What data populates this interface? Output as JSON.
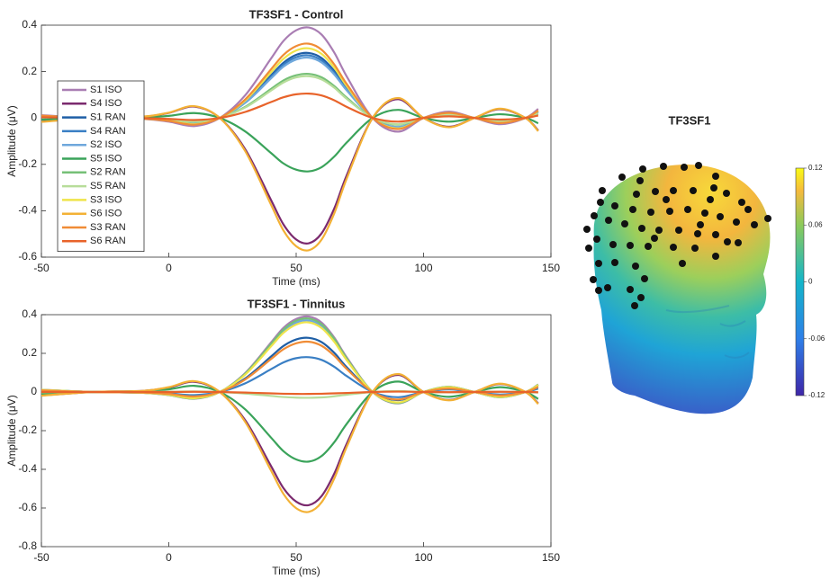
{
  "chart_data": [
    {
      "type": "line",
      "title": "TF3SF1 - Control",
      "xlabel": "Time (ms)",
      "ylabel": "Amplitude (μV)",
      "x": [
        -50,
        -30,
        -10,
        0,
        10,
        20,
        30,
        40,
        45,
        50,
        55,
        60,
        65,
        70,
        80,
        90,
        100,
        110,
        120,
        130,
        140,
        145
      ],
      "xlim": [
        -50,
        150
      ],
      "xticks": [
        -50,
        0,
        50,
        100,
        150
      ],
      "ylim": [
        -0.6,
        0.4
      ],
      "yticks": [
        -0.6,
        -0.4,
        -0.2,
        0,
        0.2,
        0.4
      ],
      "legend": "upper left",
      "series": [
        {
          "name": "S1 ISO",
          "color": "#a97db3",
          "values": [
            0.012,
            0,
            -0.004,
            -0.016,
            -0.035,
            0,
            0.098,
            0.254,
            0.332,
            0.378,
            0.39,
            0.359,
            0.281,
            0.176,
            0,
            -0.059,
            0,
            0.027,
            0,
            -0.027,
            0,
            0.039
          ]
        },
        {
          "name": "S4 ISO",
          "color": "#7b2a6e",
          "values": [
            -0.016,
            0,
            0.005,
            0.022,
            0.049,
            0,
            -0.135,
            -0.351,
            -0.459,
            -0.524,
            -0.54,
            -0.497,
            -0.389,
            -0.243,
            0,
            0.081,
            0,
            -0.038,
            0,
            0.038,
            0,
            -0.054
          ]
        },
        {
          "name": "S1 RAN",
          "color": "#1f5fa6",
          "values": [
            0.008,
            0,
            -0.003,
            -0.011,
            -0.025,
            0,
            0.07,
            0.182,
            0.238,
            0.272,
            0.28,
            0.258,
            0.202,
            0.126,
            0,
            -0.042,
            0,
            0.02,
            0,
            -0.02,
            0,
            0.028
          ]
        },
        {
          "name": "S4 RAN",
          "color": "#3a7fc4",
          "values": [
            0.008,
            0,
            -0.003,
            -0.011,
            -0.024,
            0,
            0.068,
            0.176,
            0.23,
            0.262,
            0.27,
            0.248,
            0.194,
            0.122,
            0,
            -0.041,
            0,
            0.019,
            0,
            -0.019,
            0,
            0.027
          ]
        },
        {
          "name": "S2 ISO",
          "color": "#6fa8dc",
          "values": [
            0.008,
            0,
            -0.003,
            -0.01,
            -0.023,
            0,
            0.065,
            0.169,
            0.221,
            0.252,
            0.26,
            0.239,
            0.187,
            0.117,
            0,
            -0.039,
            0,
            0.018,
            0,
            -0.018,
            0,
            0.026
          ]
        },
        {
          "name": "S5 ISO",
          "color": "#3aa35a",
          "values": [
            -0.007,
            0,
            0.002,
            0.009,
            0.021,
            0,
            -0.058,
            -0.15,
            -0.196,
            -0.223,
            -0.23,
            -0.212,
            -0.166,
            -0.104,
            0,
            0.035,
            0,
            -0.016,
            0,
            0.016,
            0,
            -0.023
          ]
        },
        {
          "name": "S2 RAN",
          "color": "#76c077",
          "values": [
            0.006,
            0,
            -0.002,
            -0.008,
            -0.017,
            0,
            0.048,
            0.124,
            0.162,
            0.184,
            0.19,
            0.175,
            0.137,
            0.086,
            0,
            -0.029,
            0,
            0.013,
            0,
            -0.013,
            0,
            0.019
          ]
        },
        {
          "name": "S5 RAN",
          "color": "#b7dd9a",
          "values": [
            0.005,
            0,
            -0.002,
            -0.007,
            -0.016,
            0,
            0.045,
            0.117,
            0.153,
            0.175,
            0.18,
            0.166,
            0.13,
            0.081,
            0,
            -0.027,
            0,
            0.013,
            0,
            -0.013,
            0,
            0.018
          ]
        },
        {
          "name": "S3 ISO",
          "color": "#efe44a",
          "values": [
            0.009,
            0,
            -0.003,
            -0.012,
            -0.027,
            0,
            0.075,
            0.195,
            0.255,
            0.291,
            0.3,
            0.276,
            0.216,
            0.135,
            0,
            -0.045,
            0,
            0.021,
            0,
            -0.021,
            0,
            0.03
          ]
        },
        {
          "name": "S6 ISO",
          "color": "#f3b135",
          "values": [
            -0.017,
            0,
            0.006,
            0.023,
            0.051,
            0,
            -0.143,
            -0.371,
            -0.485,
            -0.553,
            -0.57,
            -0.524,
            -0.41,
            -0.257,
            0,
            0.086,
            0,
            -0.04,
            0,
            0.04,
            0,
            -0.057
          ]
        },
        {
          "name": "S3 RAN",
          "color": "#f08c36",
          "values": [
            0.01,
            0,
            -0.003,
            -0.013,
            -0.029,
            0,
            0.08,
            0.208,
            0.272,
            0.31,
            0.32,
            0.294,
            0.23,
            0.144,
            0,
            -0.048,
            0,
            0.022,
            0,
            -0.022,
            0,
            0.032
          ]
        },
        {
          "name": "S6 RAN",
          "color": "#e8632a",
          "values": [
            0.003,
            0,
            -0.001,
            -0.004,
            -0.009,
            0,
            0.026,
            0.068,
            0.089,
            0.102,
            0.105,
            0.097,
            0.076,
            0.047,
            0,
            -0.016,
            0,
            0.007,
            0,
            -0.007,
            0,
            0.011
          ]
        }
      ]
    },
    {
      "type": "line",
      "title": "TF3SF1 - Tinnitus",
      "xlabel": "Time (ms)",
      "ylabel": "Amplitude (μV)",
      "x": [
        -50,
        -30,
        -10,
        0,
        10,
        20,
        30,
        40,
        45,
        50,
        55,
        60,
        65,
        70,
        80,
        90,
        100,
        110,
        120,
        130,
        140,
        145
      ],
      "xlim": [
        -50,
        150
      ],
      "xticks": [
        -50,
        0,
        50,
        100,
        150
      ],
      "ylim": [
        -0.8,
        0.4
      ],
      "yticks": [
        -0.8,
        -0.6,
        -0.4,
        -0.2,
        0,
        0.2,
        0.4
      ],
      "series": [
        {
          "color": "#a97db3",
          "values": [
            0.012,
            0,
            -0.004,
            -0.016,
            -0.035,
            0,
            0.098,
            0.254,
            0.332,
            0.378,
            0.39,
            0.359,
            0.281,
            0.176,
            0,
            -0.059,
            0,
            0.027,
            0,
            -0.027,
            0,
            0.039
          ]
        },
        {
          "color": "#7b2a6e",
          "values": [
            -0.018,
            0,
            0.006,
            0.023,
            0.053,
            0,
            -0.146,
            -0.38,
            -0.497,
            -0.567,
            -0.585,
            -0.538,
            -0.421,
            -0.263,
            0,
            0.088,
            0,
            -0.041,
            0,
            0.041,
            0,
            -0.059
          ]
        },
        {
          "color": "#1f5fa6",
          "values": [
            0.008,
            0,
            -0.003,
            -0.011,
            -0.025,
            0,
            0.07,
            0.182,
            0.238,
            0.272,
            0.28,
            0.258,
            0.202,
            0.126,
            0,
            -0.042,
            0,
            0.02,
            0,
            -0.02,
            0,
            0.028
          ]
        },
        {
          "color": "#3a7fc4",
          "values": [
            0.005,
            0,
            -0.002,
            -0.007,
            -0.016,
            0,
            0.045,
            0.117,
            0.153,
            0.175,
            0.18,
            0.166,
            0.13,
            0.081,
            0,
            -0.027,
            0,
            0.013,
            0,
            -0.013,
            0,
            0.018
          ]
        },
        {
          "color": "#6fa8dc",
          "values": [
            0.011,
            0,
            -0.004,
            -0.015,
            -0.033,
            0,
            0.093,
            0.241,
            0.315,
            0.359,
            0.37,
            0.34,
            0.266,
            0.167,
            0,
            -0.056,
            0,
            0.026,
            0,
            -0.026,
            0,
            0.037
          ]
        },
        {
          "color": "#3aa35a",
          "values": [
            -0.011,
            0,
            0.004,
            0.014,
            0.032,
            0,
            -0.09,
            -0.234,
            -0.306,
            -0.349,
            -0.36,
            -0.331,
            -0.259,
            -0.162,
            0,
            0.054,
            0,
            -0.025,
            0,
            0.025,
            0,
            -0.036
          ]
        },
        {
          "color": "#76c077",
          "values": [
            0.011,
            0,
            -0.004,
            -0.015,
            -0.034,
            0,
            0.095,
            0.247,
            0.323,
            0.369,
            0.38,
            0.35,
            0.274,
            0.171,
            0,
            -0.057,
            0,
            0.027,
            0,
            -0.027,
            0,
            0.038
          ]
        },
        {
          "color": "#b7dd9a",
          "values": [
            -0.001,
            0,
            0,
            0.001,
            0.003,
            0,
            -0.008,
            -0.02,
            -0.026,
            -0.029,
            -0.03,
            -0.028,
            -0.022,
            -0.014,
            0,
            0.005,
            0,
            -0.002,
            0,
            0.002,
            0,
            -0.003
          ]
        },
        {
          "color": "#efe44a",
          "values": [
            0.011,
            0,
            -0.004,
            -0.014,
            -0.032,
            0,
            0.09,
            0.234,
            0.306,
            0.349,
            0.36,
            0.331,
            0.259,
            0.162,
            0,
            -0.054,
            0,
            0.025,
            0,
            -0.025,
            0,
            0.036
          ]
        },
        {
          "color": "#f3b135",
          "values": [
            -0.019,
            0,
            0.006,
            0.025,
            0.056,
            0,
            -0.155,
            -0.403,
            -0.527,
            -0.601,
            -0.62,
            -0.57,
            -0.446,
            -0.279,
            0,
            0.093,
            0,
            -0.043,
            0,
            0.043,
            0,
            -0.062
          ]
        },
        {
          "color": "#f08c36",
          "values": [
            0.008,
            0,
            -0.003,
            -0.01,
            -0.023,
            0,
            0.065,
            0.169,
            0.221,
            0.252,
            0.26,
            0.239,
            0.187,
            0.117,
            0,
            -0.039,
            0,
            0.018,
            0,
            -0.018,
            0,
            0.026
          ]
        },
        {
          "color": "#e8632a",
          "values": [
            0,
            0,
            0,
            0,
            0.001,
            0,
            -0.003,
            -0.007,
            -0.009,
            -0.01,
            -0.01,
            -0.009,
            -0.007,
            -0.005,
            0,
            0.002,
            0,
            -0.001,
            0,
            0.001,
            0,
            -0.001
          ]
        }
      ]
    }
  ],
  "topomap": {
    "title": "TF3SF1",
    "colorbar": {
      "lim": [
        -0.12,
        0.12
      ],
      "ticks": [
        -0.12,
        -0.06,
        0,
        0.06,
        0.12
      ]
    }
  }
}
